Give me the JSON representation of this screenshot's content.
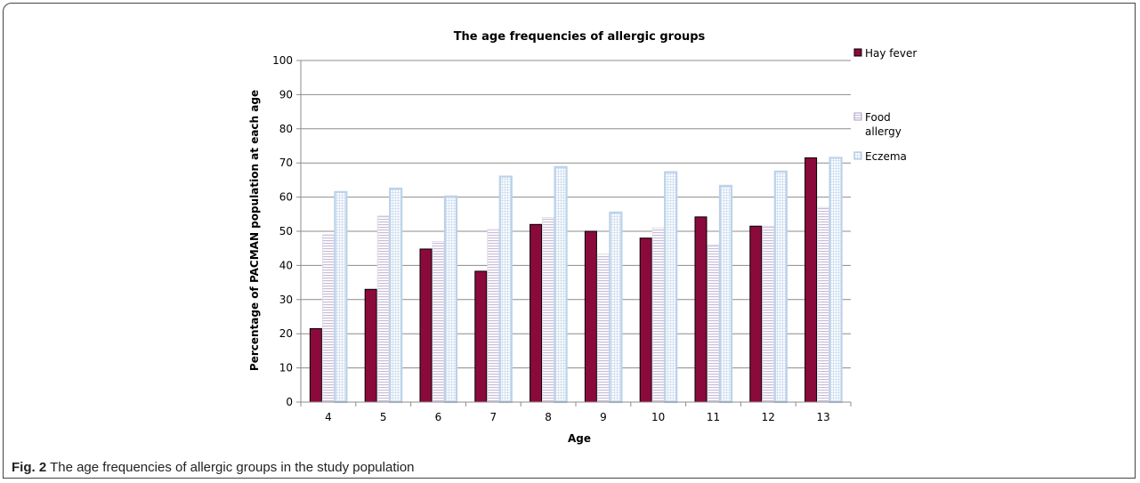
{
  "figure": {
    "caption_label": "Fig. 2",
    "caption_text": " The age frequencies of allergic groups in the study population"
  },
  "chart_data": {
    "type": "bar",
    "title": "The age frequencies of allergic groups",
    "xlabel": "Age",
    "ylabel": "Percentage of PACMAN population at each age",
    "categories": [
      "4",
      "5",
      "6",
      "7",
      "8",
      "9",
      "10",
      "11",
      "12",
      "13"
    ],
    "ylim": [
      0,
      100
    ],
    "yticks": [
      0,
      10,
      20,
      30,
      40,
      50,
      60,
      70,
      80,
      90,
      100
    ],
    "grid": true,
    "legend_position": "right",
    "series": [
      {
        "name": "Hay fever",
        "values": [
          21.5,
          33,
          44.8,
          38.3,
          52,
          50,
          48,
          54.2,
          51.5,
          71.5
        ],
        "color": "#8b0a3c",
        "pattern": "solid"
      },
      {
        "name": "Food allergy",
        "values": [
          49,
          54.5,
          47,
          50.5,
          54,
          43.3,
          51,
          46,
          51.5,
          57
        ],
        "color": "#c8bcd8",
        "pattern": "horizontal-stripes"
      },
      {
        "name": "Eczema",
        "values": [
          61.5,
          62.5,
          60.2,
          66,
          68.8,
          55.5,
          67.3,
          63.3,
          67.5,
          71.5
        ],
        "color": "#bcd2ea",
        "pattern": "hatched"
      }
    ]
  }
}
